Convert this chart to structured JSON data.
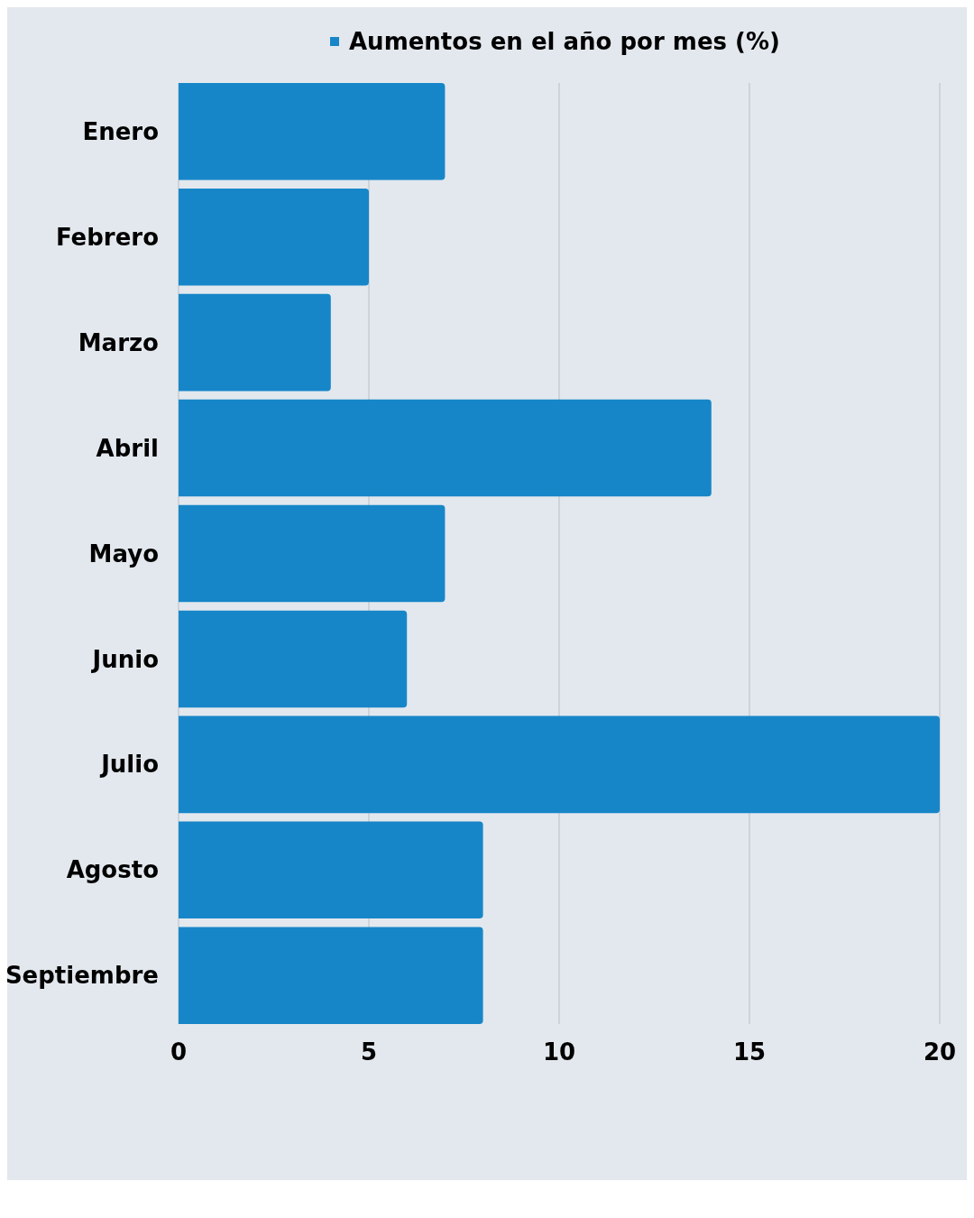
{
  "chart_data": {
    "type": "bar",
    "orientation": "horizontal",
    "categories": [
      "Enero",
      "Febrero",
      "Marzo",
      "Abril",
      "Mayo",
      "Junio",
      "Julio",
      "Agosto",
      "Septiembre"
    ],
    "series": [
      {
        "name": "Aumentos en el año por mes (%)",
        "color": "#1786c8",
        "values": [
          7,
          5,
          4,
          14,
          7,
          6,
          20,
          8,
          8
        ]
      }
    ],
    "xlim": [
      0,
      20
    ],
    "xticks": [
      0,
      5,
      10,
      15,
      20
    ],
    "grid": "x",
    "legend": "top"
  }
}
